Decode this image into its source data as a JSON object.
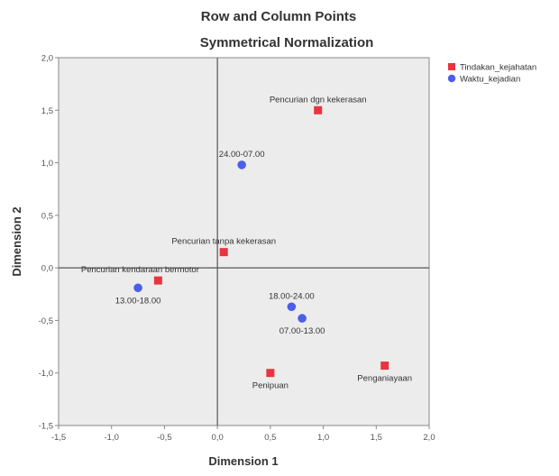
{
  "chart_data": {
    "type": "scatter",
    "title": "Row and Column Points",
    "subtitle": "Symmetrical Normalization",
    "xlabel": "Dimension 1",
    "ylabel": "Dimension 2",
    "xlim": [
      -1.5,
      2.0
    ],
    "ylim": [
      -1.5,
      2.0
    ],
    "x_ticks": [
      -1.5,
      -1.0,
      -0.5,
      0.0,
      0.5,
      1.0,
      1.5,
      2.0
    ],
    "y_ticks": [
      -1.5,
      -1.0,
      -0.5,
      0.0,
      0.5,
      1.0,
      1.5,
      2.0
    ],
    "x_tick_labels": [
      "-1,5",
      "-1,0",
      "-0,5",
      "0,0",
      "0,5",
      "1,0",
      "1,5",
      "2,0"
    ],
    "y_tick_labels": [
      "-1,5",
      "-1,0",
      "-0,5",
      "0,0",
      "0,5",
      "1,0",
      "1,5",
      "2,0"
    ],
    "grid": false,
    "legend_position": "top-right",
    "colors": {
      "plot_bg": "#ececec",
      "axis_line": "#888888",
      "zero_line": "#555555"
    },
    "series": [
      {
        "name": "Tindakan_kejahatan",
        "marker": "square",
        "color": "#e8343e",
        "points": [
          {
            "label": "Pencurian dgn kekerasan",
            "x": 0.95,
            "y": 1.5,
            "label_pos": "above"
          },
          {
            "label": "Pencurian tanpa kekerasan",
            "x": 0.06,
            "y": 0.15,
            "label_pos": "above"
          },
          {
            "label": "Pencurian kendaraan bermotor",
            "x": -0.56,
            "y": -0.12,
            "label_pos": "above-left"
          },
          {
            "label": "Penipuan",
            "x": 0.5,
            "y": -1.0,
            "label_pos": "below"
          },
          {
            "label": "Penganiayaan",
            "x": 1.58,
            "y": -0.93,
            "label_pos": "below"
          }
        ]
      },
      {
        "name": "Waktu_kejadian",
        "marker": "circle",
        "color": "#4a5ee8",
        "points": [
          {
            "label": "24.00-07.00",
            "x": 0.23,
            "y": 0.98,
            "label_pos": "above"
          },
          {
            "label": "13.00-18.00",
            "x": -0.75,
            "y": -0.19,
            "label_pos": "below"
          },
          {
            "label": "18.00-24.00",
            "x": 0.7,
            "y": -0.37,
            "label_pos": "above"
          },
          {
            "label": "07.00-13.00",
            "x": 0.8,
            "y": -0.48,
            "label_pos": "below"
          }
        ]
      }
    ]
  }
}
